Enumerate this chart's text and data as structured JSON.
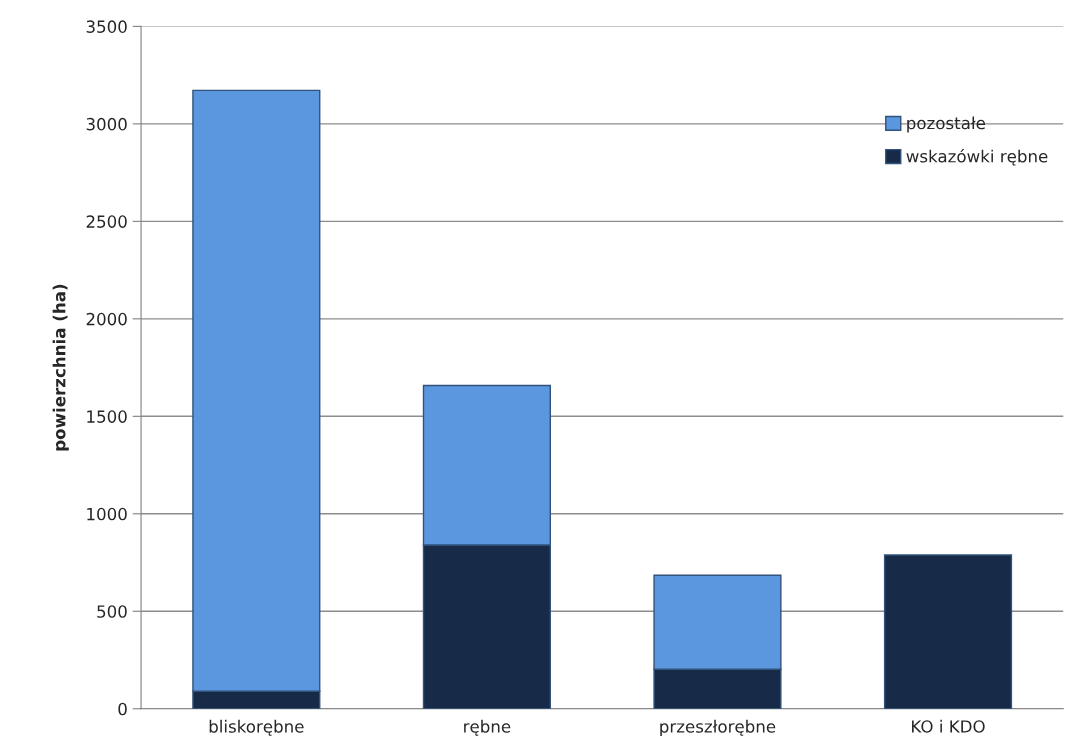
{
  "chart_data": {
    "type": "bar",
    "stacked": true,
    "ylabel": "powierzchnia (ha)",
    "categories": [
      "bliskorębne",
      "rębne",
      "przeszłorębne",
      "KO i KDO"
    ],
    "series": [
      {
        "name": "wskazówki rębne",
        "color": "#172b48",
        "values": [
          90,
          840,
          203,
          789
        ]
      },
      {
        "name": "pozostałe",
        "color": "#5b97de",
        "values": [
          3082,
          818,
          482,
          null
        ]
      }
    ],
    "ylim": [
      0,
      3500
    ],
    "yticks": [
      0,
      500,
      1000,
      1500,
      2000,
      2500,
      3000,
      3500
    ],
    "grid": "y",
    "legend": "top right"
  }
}
